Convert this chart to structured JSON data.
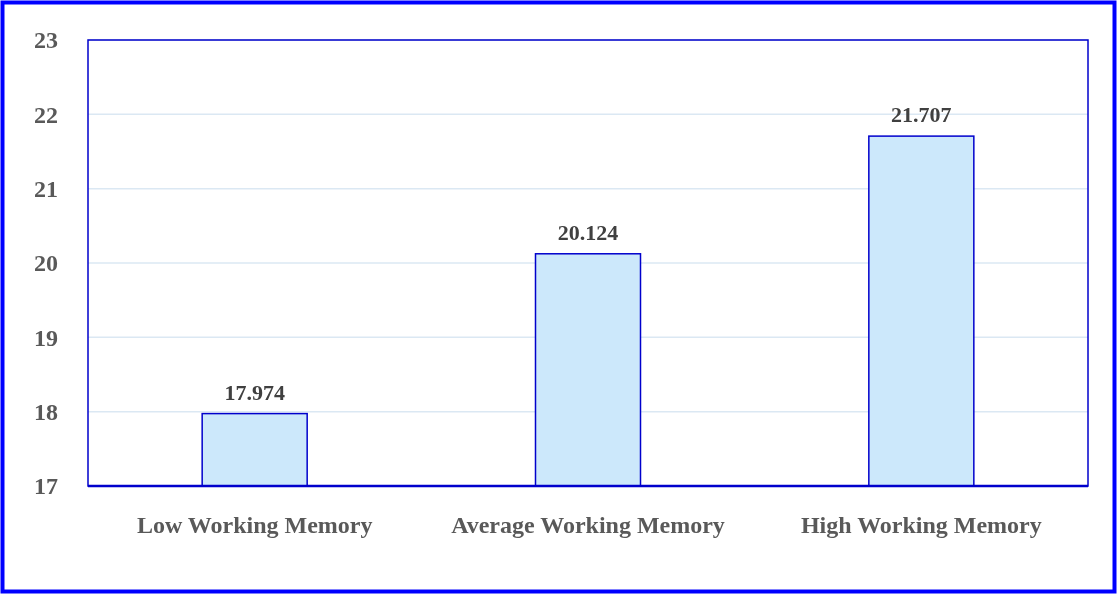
{
  "chart_data": {
    "type": "bar",
    "categories": [
      "Low Working Memory",
      "Average Working Memory",
      "High Working Memory"
    ],
    "values": [
      17.974,
      20.124,
      21.707
    ],
    "color": "#cce8fb",
    "ylim": [
      17,
      23
    ],
    "yticks": [
      17,
      18,
      19,
      20,
      21,
      22,
      23
    ],
    "grid": "y",
    "data_labels": true
  }
}
